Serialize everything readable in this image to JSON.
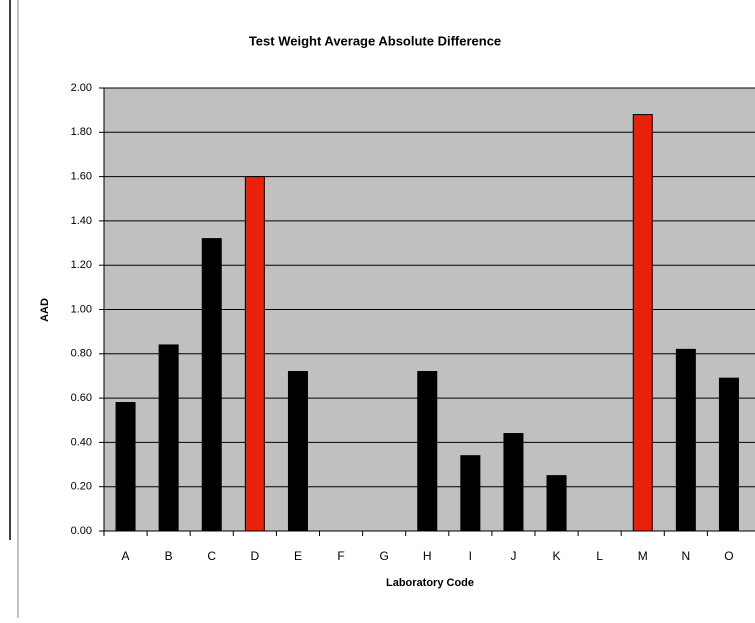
{
  "chart_data": {
    "type": "bar",
    "title": "Test Weight Average Absolute Difference",
    "x_label": "Laboratory Code",
    "y_label": "AAD",
    "categories": [
      "A",
      "B",
      "C",
      "D",
      "E",
      "F",
      "G",
      "H",
      "I",
      "J",
      "K",
      "L",
      "M",
      "N",
      "O"
    ],
    "values": [
      0.58,
      0.84,
      1.32,
      1.6,
      0.72,
      null,
      null,
      0.72,
      0.34,
      0.44,
      0.25,
      null,
      1.88,
      0.82,
      0.69
    ],
    "colors": [
      "#000000",
      "#000000",
      "#000000",
      "#e8210c",
      "#000000",
      "#000000",
      "#000000",
      "#000000",
      "#000000",
      "#000000",
      "#000000",
      "#000000",
      "#e8210c",
      "#000000",
      "#000000"
    ],
    "ylim": [
      0,
      2
    ],
    "yticks": [
      {
        "value": 0,
        "label": "0.00"
      },
      {
        "value": 0.2,
        "label": "0.20"
      },
      {
        "value": 0.4,
        "label": "0.40"
      },
      {
        "value": 0.6,
        "label": "0.60"
      },
      {
        "value": 0.8,
        "label": "0.80"
      },
      {
        "value": 1,
        "label": "1.00"
      },
      {
        "value": 1.2,
        "label": "1.20"
      },
      {
        "value": 1.4,
        "label": "1.40"
      },
      {
        "value": 1.6,
        "label": "1.60"
      },
      {
        "value": 1.8,
        "label": "1.80"
      },
      {
        "value": 2,
        "label": "2.00"
      }
    ],
    "grid": true
  }
}
